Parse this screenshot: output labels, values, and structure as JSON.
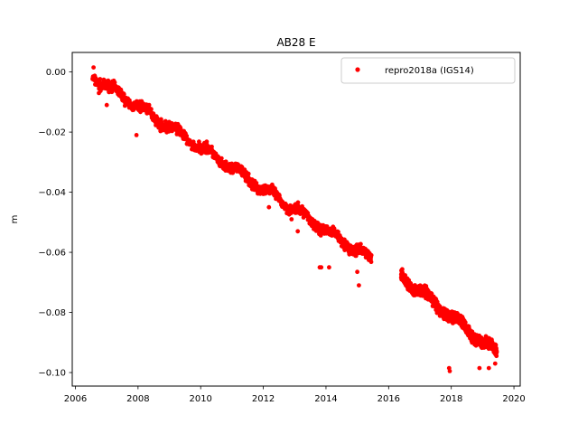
{
  "chart_data": {
    "type": "scatter",
    "title": "AB28 E",
    "xlabel": "",
    "ylabel": "m",
    "xlim": [
      2005.9,
      2020.2
    ],
    "ylim": [
      -0.1045,
      0.0065
    ],
    "xticks": [
      2006,
      2008,
      2010,
      2012,
      2014,
      2016,
      2018,
      2020
    ],
    "xtick_labels": [
      "2006",
      "2008",
      "2010",
      "2012",
      "2014",
      "2016",
      "2018",
      "2020"
    ],
    "yticks": [
      0.0,
      -0.02,
      -0.04,
      -0.06,
      -0.08,
      -0.1
    ],
    "ytick_labels": [
      "0.00",
      "−0.02",
      "−0.04",
      "−0.06",
      "−0.08",
      "−0.10"
    ],
    "grid": false,
    "legend_position": "top-right",
    "series": [
      {
        "name": "repro2018a (IGS14)",
        "color": "#ff0000",
        "marker": "circle",
        "segments": [
          {
            "x_start": 2006.55,
            "x_end": 2015.45,
            "y_start": -0.0015,
            "y_end": -0.0625,
            "noise": 0.0025
          },
          {
            "x_start": 2016.4,
            "x_end": 2019.45,
            "y_start": -0.068,
            "y_end": -0.0935,
            "noise": 0.0025
          }
        ],
        "notable_points": [
          {
            "x": 2006.58,
            "y": 0.0015
          },
          {
            "x": 2006.75,
            "y": -0.007
          },
          {
            "x": 2007.0,
            "y": -0.011
          },
          {
            "x": 2007.95,
            "y": -0.021
          },
          {
            "x": 2012.18,
            "y": -0.045
          },
          {
            "x": 2012.9,
            "y": -0.049
          },
          {
            "x": 2013.1,
            "y": -0.053
          },
          {
            "x": 2013.8,
            "y": -0.065
          },
          {
            "x": 2013.85,
            "y": -0.065
          },
          {
            "x": 2014.1,
            "y": -0.065
          },
          {
            "x": 2015.0,
            "y": -0.0665
          },
          {
            "x": 2015.05,
            "y": -0.071
          },
          {
            "x": 2017.93,
            "y": -0.0985
          },
          {
            "x": 2017.95,
            "y": -0.0995
          },
          {
            "x": 2018.9,
            "y": -0.0985
          },
          {
            "x": 2019.2,
            "y": -0.0985
          },
          {
            "x": 2019.4,
            "y": -0.097
          }
        ]
      }
    ]
  }
}
